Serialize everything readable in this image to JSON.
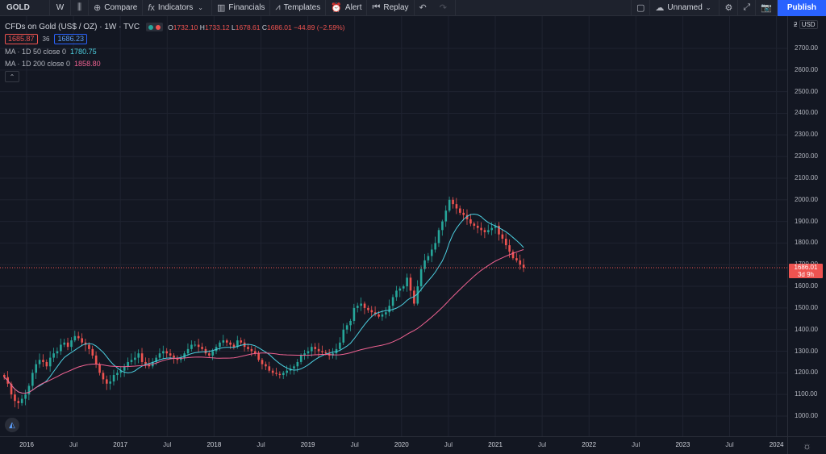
{
  "toolbar": {
    "symbol": "GOLD",
    "interval": "W",
    "compare": "Compare",
    "indicators": "Indicators",
    "financials": "Financials",
    "templates": "Templates",
    "alert": "Alert",
    "replay": "Replay",
    "layout_name": "Unnamed",
    "publish": "Publish"
  },
  "legend": {
    "title": "CFDs on Gold (US$ / OZ) · 1W · TVC",
    "open_key": "O",
    "open": "1732.10",
    "high_key": "H",
    "high": "1733.12",
    "low_key": "L",
    "low": "1678.61",
    "close_key": "C",
    "close": "1686.01",
    "change": "−44.89 (−2.59%)",
    "sell_price": "1685.87",
    "spread": "36",
    "buy_price": "1686.23",
    "ma1_label": "MA · 1D 50 close 0",
    "ma1_value": "1780.75",
    "ma2_label": "MA · 1D 200 close 0",
    "ma2_value": "1858.80",
    "collapse_icon": "chevron-up-icon"
  },
  "price_axis": {
    "unit": "USD",
    "unit_prefix": "ƻ",
    "labels": [
      "2700.00",
      "2600.00",
      "2500.00",
      "2400.00",
      "2300.00",
      "2200.00",
      "2100.00",
      "2000.00",
      "1900.00",
      "1800.00",
      "1700.00",
      "1600.00",
      "1500.00",
      "1400.00",
      "1300.00",
      "1200.00",
      "1100.00",
      "1000.00"
    ],
    "current_price": "1686.01",
    "countdown": "3d 9h"
  },
  "time_axis": {
    "labels": [
      "2016",
      "Jul",
      "2017",
      "Jul",
      "2018",
      "Jul",
      "2019",
      "Jul",
      "2020",
      "Jul",
      "2021",
      "Jul",
      "2022",
      "Jul",
      "2023",
      "Jul",
      "2024"
    ]
  },
  "colors": {
    "up": "#26a69a",
    "down": "#ef5350",
    "ma50": "#4dd0e1",
    "ma200": "#f06292",
    "background": "#131722",
    "accent": "#2962ff"
  },
  "chart_data": {
    "type": "candlestick",
    "title": "CFDs on Gold (US$ / OZ) · 1W · TVC",
    "ylim": [
      950,
      2800
    ],
    "x_start": "2015-10",
    "x_labels": [
      "2016",
      "Jul",
      "2017",
      "Jul",
      "2018",
      "Jul",
      "2019",
      "Jul",
      "2020",
      "Jul",
      "2021",
      "Jul",
      "2022",
      "Jul",
      "2023",
      "Jul",
      "2024"
    ],
    "close_series": [
      1180,
      1150,
      1100,
      1070,
      1060,
      1080,
      1100,
      1140,
      1200,
      1240,
      1260,
      1250,
      1230,
      1270,
      1290,
      1300,
      1330,
      1340,
      1320,
      1350,
      1370,
      1360,
      1340,
      1330,
      1310,
      1280,
      1240,
      1200,
      1170,
      1150,
      1160,
      1190,
      1200,
      1210,
      1230,
      1250,
      1260,
      1270,
      1290,
      1250,
      1240,
      1230,
      1250,
      1270,
      1290,
      1300,
      1290,
      1280,
      1270,
      1260,
      1270,
      1290,
      1310,
      1330,
      1330,
      1320,
      1310,
      1290,
      1280,
      1300,
      1320,
      1340,
      1350,
      1340,
      1330,
      1320,
      1350,
      1340,
      1320,
      1310,
      1300,
      1290,
      1260,
      1240,
      1230,
      1210,
      1200,
      1195,
      1190,
      1200,
      1210,
      1220,
      1230,
      1250,
      1280,
      1290,
      1300,
      1320,
      1310,
      1300,
      1295,
      1290,
      1280,
      1290,
      1310,
      1340,
      1400,
      1420,
      1440,
      1500,
      1510,
      1520,
      1500,
      1490,
      1480,
      1470,
      1460,
      1470,
      1480,
      1510,
      1550,
      1580,
      1590,
      1600,
      1640,
      1580,
      1520,
      1600,
      1680,
      1720,
      1740,
      1770,
      1800,
      1860,
      1900,
      1950,
      2000,
      1980,
      1960,
      1940,
      1930,
      1910,
      1890,
      1880,
      1870,
      1860,
      1850,
      1860,
      1870,
      1880,
      1840,
      1820,
      1790,
      1760,
      1730,
      1720,
      1700,
      1686
    ],
    "ma50_series": [],
    "ma200_series": []
  }
}
